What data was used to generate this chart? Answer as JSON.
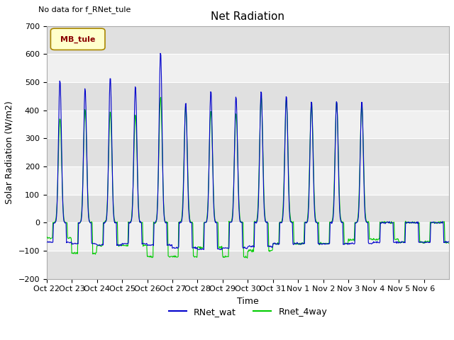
{
  "title": "Net Radiation",
  "xlabel": "Time",
  "ylabel": "Solar Radiation (W/m2)",
  "ylim": [
    -200,
    700
  ],
  "yticks": [
    -200,
    -100,
    0,
    100,
    200,
    300,
    400,
    500,
    600,
    700
  ],
  "xtick_labels": [
    "Oct 22",
    "Oct 23",
    "Oct 24",
    "Oct 25",
    "Oct 26",
    "Oct 27",
    "Oct 28",
    "Oct 29",
    "Oct 30",
    "Oct 31",
    "Nov 1",
    "Nov 2",
    "Nov 3",
    "Nov 4",
    "Nov 5",
    "Nov 6"
  ],
  "no_data_text": "No data for f_RNet_tule",
  "legend_box_label": "MB_tule",
  "legend_box_facecolor": "#ffffcc",
  "legend_box_edgecolor": "#aa8800",
  "legend_box_textcolor": "#8b0000",
  "line1_label": "RNet_wat",
  "line1_color": "#0000cc",
  "line2_label": "Rnet_4way",
  "line2_color": "#00cc00",
  "background_color": "#ffffff",
  "plot_bg_color": "#e8e8e8",
  "title_fontsize": 11,
  "axis_label_fontsize": 9,
  "tick_fontsize": 8,
  "n_days": 16,
  "band_colors": [
    "#ffffff",
    "#e0e0e0"
  ],
  "band_ranges": [
    [
      -200,
      -100
    ],
    [
      -100,
      0
    ],
    [
      0,
      100
    ],
    [
      100,
      200
    ],
    [
      200,
      300
    ],
    [
      300,
      400
    ],
    [
      400,
      500
    ],
    [
      500,
      600
    ],
    [
      600,
      700
    ]
  ],
  "band_fills": [
    "#e0e0e0",
    "#f0f0f0",
    "#e0e0e0",
    "#f0f0f0",
    "#e0e0e0",
    "#f0f0f0",
    "#e0e0e0",
    "#f0f0f0",
    "#e0e0e0"
  ]
}
